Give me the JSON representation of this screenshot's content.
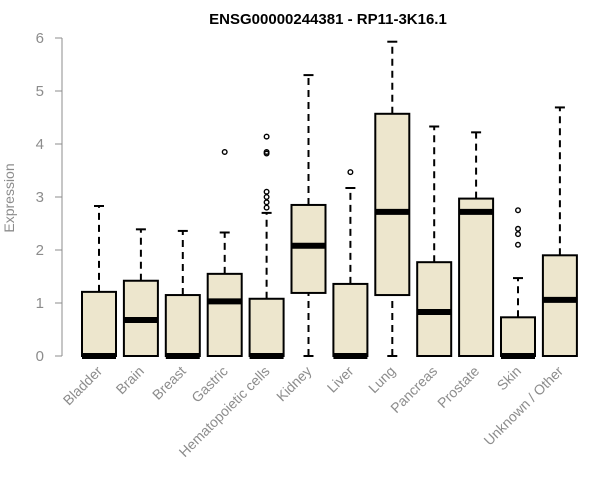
{
  "chart_data": {
    "type": "boxplot",
    "title": "ENSG00000244381 - RP11-3K16.1",
    "xlabel": "",
    "ylabel": "Expression",
    "ylim": [
      0,
      6
    ],
    "yticks": [
      "0",
      "1",
      "2",
      "3",
      "4",
      "5",
      "6"
    ],
    "grid": false,
    "colors": {
      "box_fill": "#ede6cd",
      "box_stroke": "#000000",
      "axis": "#8c8c8c",
      "title": "#000000"
    },
    "categories": [
      "Bladder",
      "Brain",
      "Breast",
      "Gastric",
      "Hematopoietic cells",
      "Kidney",
      "Liver",
      "Lung",
      "Pancreas",
      "Prostate",
      "Skin",
      "Unknown / Other"
    ],
    "boxes": [
      {
        "min": 0,
        "q1": 0,
        "median": 0,
        "q3": 1.21,
        "max": 2.83,
        "outliers": []
      },
      {
        "min": 0,
        "q1": 0,
        "median": 0.68,
        "q3": 1.42,
        "max": 2.39,
        "outliers": []
      },
      {
        "min": 0,
        "q1": 0,
        "median": 0,
        "q3": 1.15,
        "max": 2.36,
        "outliers": []
      },
      {
        "min": 0,
        "q1": 0,
        "median": 1.03,
        "q3": 1.55,
        "max": 2.33,
        "outliers": [
          3.85
        ]
      },
      {
        "min": 0,
        "q1": 0,
        "median": 0,
        "q3": 1.08,
        "max": 2.7,
        "outliers": [
          2.8,
          2.9,
          3.0,
          3.1,
          3.82,
          3.85,
          4.14
        ]
      },
      {
        "min": 0,
        "q1": 1.19,
        "median": 2.08,
        "q3": 2.85,
        "max": 5.3,
        "outliers": []
      },
      {
        "min": 0,
        "q1": 0,
        "median": 0,
        "q3": 1.36,
        "max": 3.17,
        "outliers": [
          3.47
        ]
      },
      {
        "min": 0,
        "q1": 1.15,
        "median": 2.72,
        "q3": 4.57,
        "max": 5.93,
        "outliers": []
      },
      {
        "min": 0,
        "q1": 0,
        "median": 0.83,
        "q3": 1.77,
        "max": 4.33,
        "outliers": []
      },
      {
        "min": 0,
        "q1": 0,
        "median": 2.72,
        "q3": 2.97,
        "max": 4.22,
        "outliers": []
      },
      {
        "min": 0,
        "q1": 0,
        "median": 0,
        "q3": 0.73,
        "max": 1.47,
        "outliers": [
          2.1,
          2.3,
          2.4,
          2.75
        ]
      },
      {
        "min": 0,
        "q1": 0,
        "median": 1.06,
        "q3": 1.9,
        "max": 4.69,
        "outliers": []
      }
    ]
  }
}
